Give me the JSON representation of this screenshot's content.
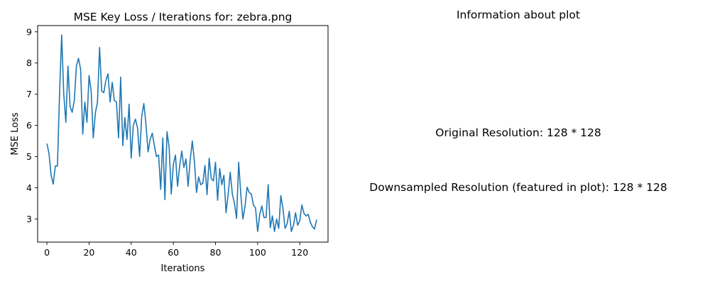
{
  "chart_data": {
    "type": "line",
    "title": "MSE Key Loss / Iterations for: zebra.png",
    "xlabel": "Iterations",
    "ylabel": "MSE Loss",
    "xlim": [
      -4.4,
      133.4
    ],
    "ylim": [
      2.26,
      9.2
    ],
    "xticks": [
      0,
      20,
      40,
      60,
      80,
      100,
      120
    ],
    "yticks": [
      3,
      4,
      5,
      6,
      7,
      8,
      9
    ],
    "grid": false,
    "series": [
      {
        "color": "#1f77b4",
        "x": [
          0,
          1,
          2,
          3,
          4,
          5,
          6,
          7,
          8,
          9,
          10,
          11,
          12,
          13,
          14,
          15,
          16,
          17,
          18,
          19,
          20,
          21,
          22,
          23,
          24,
          25,
          26,
          27,
          28,
          29,
          30,
          31,
          32,
          33,
          34,
          35,
          36,
          37,
          38,
          39,
          40,
          41,
          42,
          43,
          44,
          45,
          46,
          47,
          48,
          49,
          50,
          51,
          52,
          53,
          54,
          55,
          56,
          57,
          58,
          59,
          60,
          61,
          62,
          63,
          64,
          65,
          66,
          67,
          68,
          69,
          70,
          71,
          72,
          73,
          74,
          75,
          76,
          77,
          78,
          79,
          80,
          81,
          82,
          83,
          84,
          85,
          86,
          87,
          88,
          89,
          90,
          91,
          92,
          93,
          94,
          95,
          96,
          97,
          98,
          99,
          100,
          101,
          102,
          103,
          104,
          105,
          106,
          107,
          108,
          109,
          110,
          111,
          112,
          113,
          114,
          115,
          116,
          117,
          118,
          119,
          120,
          121,
          122,
          123,
          124,
          125,
          126,
          127,
          128
        ],
        "y": [
          5.42,
          5.1,
          4.4,
          4.12,
          4.7,
          4.7,
          7.0,
          8.9,
          7.0,
          6.1,
          7.9,
          6.6,
          6.42,
          6.8,
          7.9,
          8.15,
          7.8,
          5.72,
          6.75,
          6.1,
          7.6,
          7.1,
          5.6,
          6.4,
          6.75,
          8.5,
          7.1,
          7.05,
          7.45,
          7.65,
          6.75,
          7.38,
          6.8,
          6.75,
          5.6,
          7.55,
          5.35,
          6.25,
          5.55,
          6.68,
          4.95,
          6.0,
          6.2,
          5.92,
          5.0,
          6.3,
          6.7,
          6.05,
          5.15,
          5.55,
          5.75,
          5.35,
          5.0,
          5.05,
          3.95,
          5.6,
          3.62,
          5.8,
          5.3,
          3.8,
          4.75,
          5.05,
          4.05,
          4.7,
          5.18,
          4.65,
          4.92,
          4.05,
          4.9,
          5.5,
          4.85,
          3.85,
          4.35,
          4.1,
          4.15,
          4.72,
          3.78,
          4.95,
          4.3,
          4.22,
          4.82,
          3.6,
          4.62,
          4.1,
          4.4,
          3.2,
          3.78,
          4.5,
          3.8,
          3.5,
          3.02,
          4.82,
          3.8,
          3.0,
          3.4,
          4.02,
          3.85,
          3.8,
          3.45,
          3.35,
          2.6,
          3.15,
          3.42,
          3.05,
          3.05,
          4.1,
          2.72,
          3.1,
          2.6,
          3.0,
          2.7,
          3.75,
          3.35,
          2.7,
          2.85,
          3.25,
          2.6,
          2.8,
          3.2,
          2.8,
          2.95,
          3.45,
          3.18,
          3.1,
          3.15,
          2.9,
          2.75,
          2.68,
          2.98
        ]
      }
    ]
  },
  "info": {
    "title": "Information about plot",
    "original_resolution": "Original Resolution: 128 * 128",
    "downsampled_resolution": "Downsampled Resolution (featured in plot): 128 * 128"
  }
}
